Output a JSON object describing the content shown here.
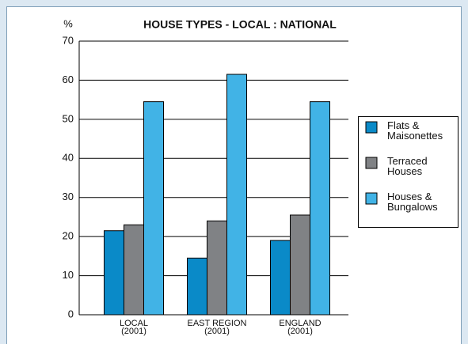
{
  "chart_data": {
    "type": "bar",
    "title": "HOUSE TYPES - LOCAL : NATIONAL",
    "y_label": "%",
    "categories": [
      "LOCAL\n(2001)",
      "EAST REGION\n(2001)",
      "ENGLAND\n(2001)"
    ],
    "series": [
      {
        "name": "Flats &\nMaisonettes",
        "color": "#0a8ac8",
        "values": [
          21.5,
          14.5,
          19
        ]
      },
      {
        "name": "Terraced\nHouses",
        "color": "#808285",
        "values": [
          23,
          24,
          25.5
        ]
      },
      {
        "name": "Houses &\nBungalows",
        "color": "#41b3e6",
        "values": [
          54.5,
          61.5,
          54.5
        ]
      }
    ],
    "ylim": [
      0,
      70
    ],
    "yticks": [
      0,
      10,
      20,
      30,
      40,
      50,
      60,
      70
    ],
    "grid": true,
    "legend": "right"
  }
}
